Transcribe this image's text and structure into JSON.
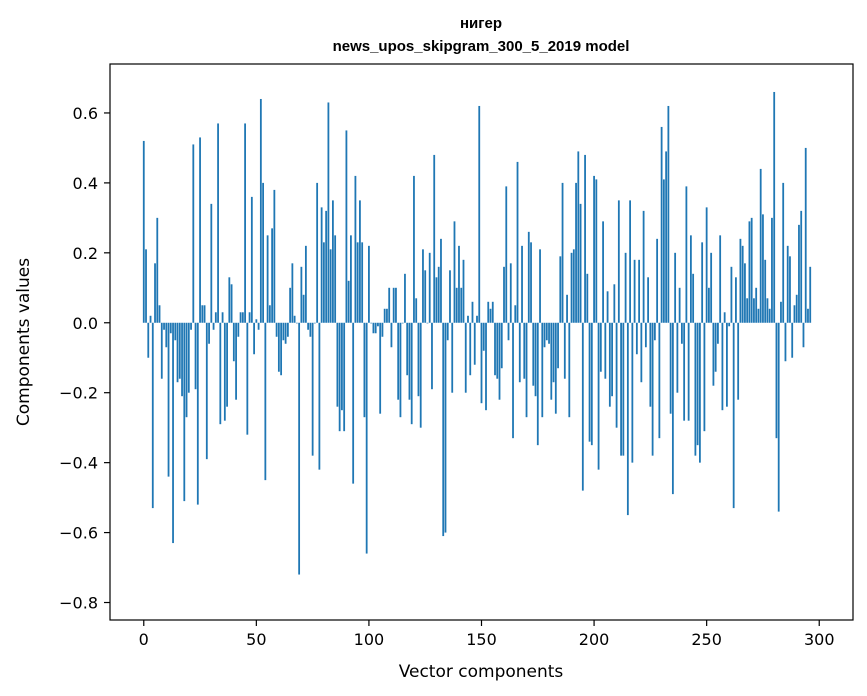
{
  "chart_data": {
    "type": "bar",
    "title_line1": "нигер",
    "title_line2": "news_upos_skipgram_300_5_2019 model",
    "xlabel": "Vector components",
    "ylabel": "Components values",
    "xlim": [
      -15,
      315
    ],
    "ylim": [
      -0.85,
      0.74
    ],
    "x_ticks": [
      0,
      50,
      100,
      150,
      200,
      250,
      300
    ],
    "y_ticks": [
      -0.8,
      -0.6,
      -0.4,
      -0.2,
      0.0,
      0.2,
      0.4,
      0.6
    ],
    "y_tick_labels": [
      "−0.8",
      "−0.6",
      "−0.4",
      "−0.2",
      "0.0",
      "0.2",
      "0.4",
      "0.6"
    ],
    "bar_color": "#1f77b4",
    "values": [
      0.52,
      0.21,
      -0.1,
      0.02,
      -0.53,
      0.17,
      0.3,
      0.05,
      -0.16,
      -0.02,
      -0.07,
      -0.44,
      -0.03,
      -0.63,
      -0.05,
      -0.17,
      -0.16,
      -0.21,
      -0.51,
      -0.27,
      -0.2,
      -0.02,
      0.51,
      -0.19,
      -0.52,
      0.53,
      0.05,
      0.05,
      -0.39,
      -0.06,
      0.34,
      -0.02,
      0.03,
      0.57,
      -0.29,
      0.03,
      -0.28,
      -0.24,
      0.13,
      0.11,
      -0.11,
      -0.22,
      -0.04,
      0.03,
      0.03,
      0.57,
      -0.32,
      0.03,
      0.36,
      -0.09,
      0.01,
      -0.02,
      0.64,
      0.4,
      -0.45,
      0.25,
      0.05,
      0.27,
      0.38,
      -0.04,
      -0.14,
      -0.15,
      -0.05,
      -0.06,
      -0.04,
      0.1,
      0.17,
      0.02,
      0.0,
      -0.72,
      0.16,
      0.08,
      0.22,
      -0.02,
      -0.04,
      -0.38,
      0.0,
      0.4,
      -0.42,
      0.33,
      0.23,
      0.32,
      0.63,
      0.21,
      0.35,
      0.25,
      -0.24,
      -0.31,
      -0.25,
      -0.31,
      0.55,
      0.12,
      0.25,
      -0.46,
      0.42,
      0.23,
      0.35,
      0.23,
      -0.27,
      -0.66,
      0.22,
      0.0,
      -0.03,
      -0.03,
      -0.01,
      -0.26,
      -0.04,
      0.04,
      0.04,
      0.1,
      -0.07,
      0.1,
      0.1,
      -0.22,
      -0.27,
      0.0,
      0.14,
      -0.15,
      -0.22,
      -0.29,
      0.42,
      0.07,
      -0.21,
      -0.3,
      0.21,
      0.15,
      0.0,
      0.2,
      -0.19,
      0.48,
      0.13,
      0.16,
      0.24,
      -0.61,
      -0.6,
      -0.05,
      0.15,
      -0.2,
      0.29,
      0.1,
      0.22,
      0.1,
      0.18,
      -0.2,
      0.02,
      -0.15,
      0.06,
      -0.12,
      0.02,
      0.62,
      -0.23,
      -0.08,
      -0.25,
      0.06,
      0.04,
      0.06,
      -0.15,
      -0.16,
      -0.22,
      -0.13,
      0.16,
      0.39,
      -0.05,
      0.17,
      -0.33,
      0.05,
      0.46,
      -0.17,
      0.22,
      -0.16,
      -0.27,
      0.26,
      0.23,
      -0.18,
      -0.21,
      -0.35,
      0.21,
      -0.27,
      -0.07,
      -0.05,
      -0.06,
      -0.22,
      -0.17,
      -0.26,
      -0.13,
      0.19,
      0.4,
      -0.16,
      0.08,
      -0.27,
      0.2,
      0.21,
      0.4,
      0.49,
      0.34,
      -0.48,
      0.48,
      0.14,
      -0.34,
      -0.35,
      0.42,
      0.41,
      -0.42,
      -0.14,
      0.29,
      -0.16,
      0.09,
      -0.24,
      -0.21,
      0.11,
      -0.3,
      0.35,
      -0.38,
      -0.38,
      0.2,
      -0.55,
      0.35,
      -0.4,
      0.18,
      -0.09,
      0.18,
      -0.17,
      0.32,
      -0.07,
      0.13,
      -0.24,
      -0.38,
      -0.05,
      0.24,
      -0.33,
      0.56,
      0.41,
      0.49,
      0.62,
      -0.26,
      -0.49,
      0.2,
      -0.2,
      0.1,
      -0.06,
      -0.28,
      0.39,
      -0.28,
      0.25,
      0.14,
      -0.38,
      -0.35,
      -0.4,
      0.23,
      -0.31,
      0.33,
      0.1,
      0.2,
      -0.18,
      -0.14,
      -0.06,
      0.25,
      -0.25,
      0.03,
      -0.24,
      -0.01,
      0.16,
      -0.53,
      0.13,
      -0.22,
      0.24,
      0.22,
      0.17,
      0.07,
      0.29,
      0.3,
      0.07,
      0.1,
      0.04,
      0.44,
      0.31,
      0.18,
      0.07,
      0.04,
      0.3,
      0.66,
      -0.33,
      -0.54,
      0.06,
      0.4,
      -0.11,
      0.22,
      0.19,
      -0.1,
      0.05,
      0.08,
      0.28,
      0.32,
      -0.07,
      0.5,
      0.04,
      0.16
    ]
  }
}
